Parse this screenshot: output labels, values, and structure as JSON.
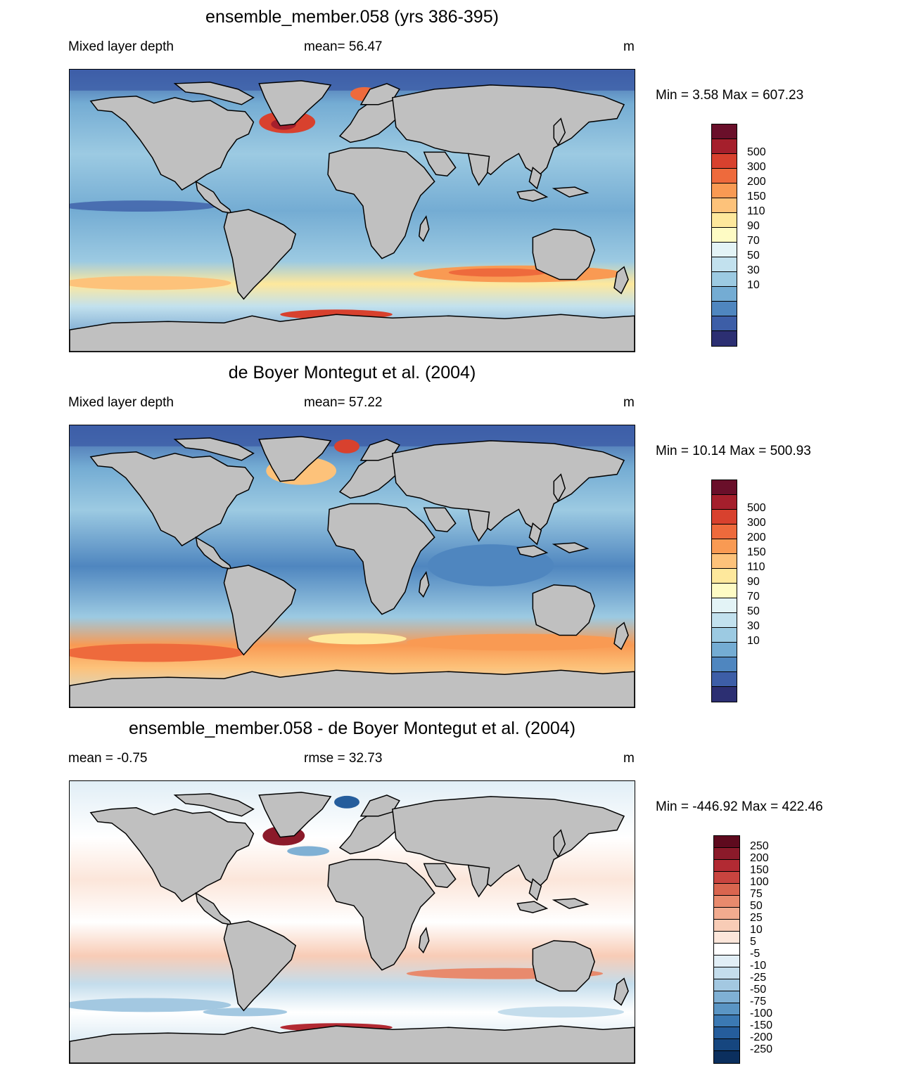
{
  "panels": [
    {
      "title": "ensemble_member.058 (yrs 386-395)",
      "left_label": "Mixed layer depth",
      "mid_label": "mean=  56.47",
      "units": "m",
      "minmax": "Min =   3.58 Max = 607.23",
      "colorbar": {
        "colors": [
          "#6a0f2a",
          "#a51f2c",
          "#d8412e",
          "#ee6a3c",
          "#f99a53",
          "#fdc27a",
          "#fee89c",
          "#fefbc4",
          "#e3f3f6",
          "#c2e1ee",
          "#9ccae2",
          "#74acd3",
          "#4f86bf",
          "#3d5ea7",
          "#2c2f72"
        ],
        "labels": [
          "500",
          "300",
          "200",
          "150",
          "110",
          "90",
          "70",
          "50",
          "30",
          "10"
        ]
      }
    },
    {
      "title": "de Boyer Montegut et al. (2004)",
      "left_label": "Mixed layer depth",
      "mid_label": "mean=  57.22",
      "units": "m",
      "minmax": "Min =  10.14 Max = 500.93",
      "colorbar": {
        "colors": [
          "#6a0f2a",
          "#a51f2c",
          "#d8412e",
          "#ee6a3c",
          "#f99a53",
          "#fdc27a",
          "#fee89c",
          "#fefbc4",
          "#e3f3f6",
          "#c2e1ee",
          "#9ccae2",
          "#74acd3",
          "#4f86bf",
          "#3d5ea7",
          "#2c2f72"
        ],
        "labels": [
          "500",
          "300",
          "200",
          "150",
          "110",
          "90",
          "70",
          "50",
          "30",
          "10"
        ]
      }
    },
    {
      "title": "ensemble_member.058 - de Boyer Montegut et al. (2004)",
      "left_label": "mean =  -0.75",
      "mid_label": "rmse =  32.73",
      "units": "m",
      "minmax": "Min = -446.92 Max = 422.46",
      "colorbar": {
        "colors": [
          "#5e0a1e",
          "#8b1a2a",
          "#b22a33",
          "#c9443f",
          "#d9654f",
          "#e88a6d",
          "#f2ab8f",
          "#f8ccb6",
          "#fce6da",
          "#ffffff",
          "#e1eef6",
          "#c4ddec",
          "#a3c8e1",
          "#7fb0d4",
          "#5a95c4",
          "#3b79b3",
          "#255d9c",
          "#16467f",
          "#0b2f5e"
        ],
        "labels": [
          "250",
          "200",
          "150",
          "100",
          "75",
          "50",
          "25",
          "10",
          "5",
          "-5",
          "-10",
          "-25",
          "-50",
          "-75",
          "-100",
          "-150",
          "-200",
          "-250"
        ]
      }
    }
  ],
  "map_colors": {
    "land": "#c0c0c0",
    "coast": "#000000"
  }
}
